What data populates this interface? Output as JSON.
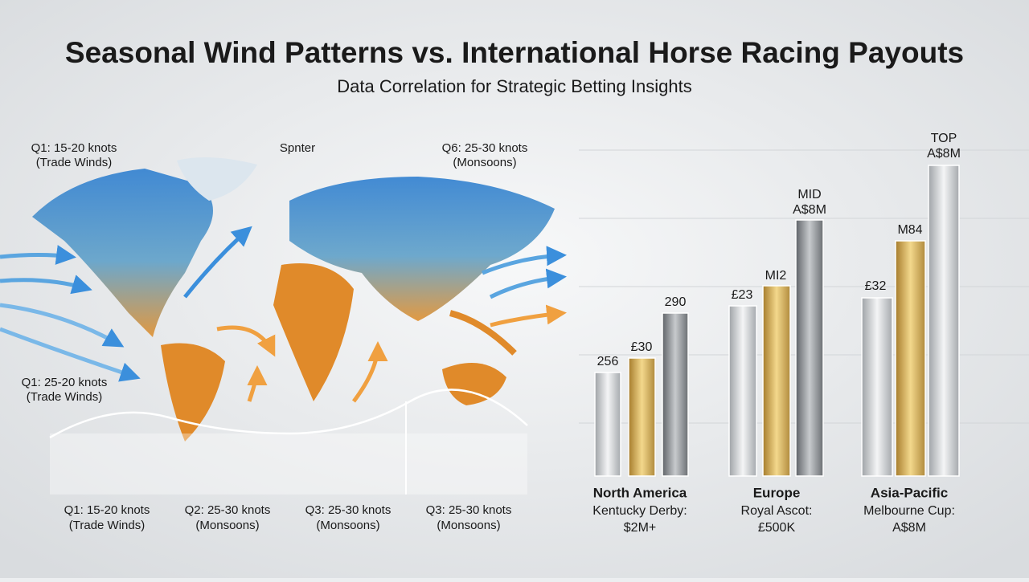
{
  "header": {
    "title": "Seasonal Wind Patterns vs. International Horse Racing Payouts",
    "subtitle": "Data Correlation for Strategic Betting Insights"
  },
  "map": {
    "annotations": [
      {
        "lines": [
          "Q1: 15-20 knots",
          "(Trade Winds)"
        ]
      },
      {
        "lines": [
          "Spnter"
        ]
      },
      {
        "lines": [
          "Q6: 25-30 knots",
          "(Monsoons)"
        ]
      },
      {
        "lines": [
          "Q1: 25-20 knots",
          "(Trade Winds)"
        ]
      }
    ],
    "quarters": [
      {
        "lines": [
          "Q1: 15-20 knots",
          "(Trade Winds)"
        ]
      },
      {
        "lines": [
          "Q2: 25-30 knots",
          "(Monsoons)"
        ]
      },
      {
        "lines": [
          "Q3: 25-30 knots",
          "(Monsoons)"
        ]
      },
      {
        "lines": [
          "Q3: 25-30 knots",
          "(Monsoons)"
        ]
      }
    ]
  },
  "payouts": {
    "groups": [
      {
        "region": "North America",
        "race": "Kentucky Derby:",
        "purse": "$2M+",
        "bar_labels": [
          [
            "256"
          ],
          [
            "£30"
          ],
          [
            "290"
          ]
        ]
      },
      {
        "region": "Europe",
        "race": "Royal Ascot:",
        "purse": "£500K",
        "bar_labels": [
          [
            "£23"
          ],
          [
            "MI2"
          ],
          [
            "MID",
            "A$8M"
          ]
        ]
      },
      {
        "region": "Asia-Pacific",
        "race": "Melbourne Cup:",
        "purse": "A$8M",
        "bar_labels": [
          [
            "£32"
          ],
          [
            "M84"
          ],
          [
            "TOP",
            "A$8M"
          ]
        ]
      }
    ]
  }
}
